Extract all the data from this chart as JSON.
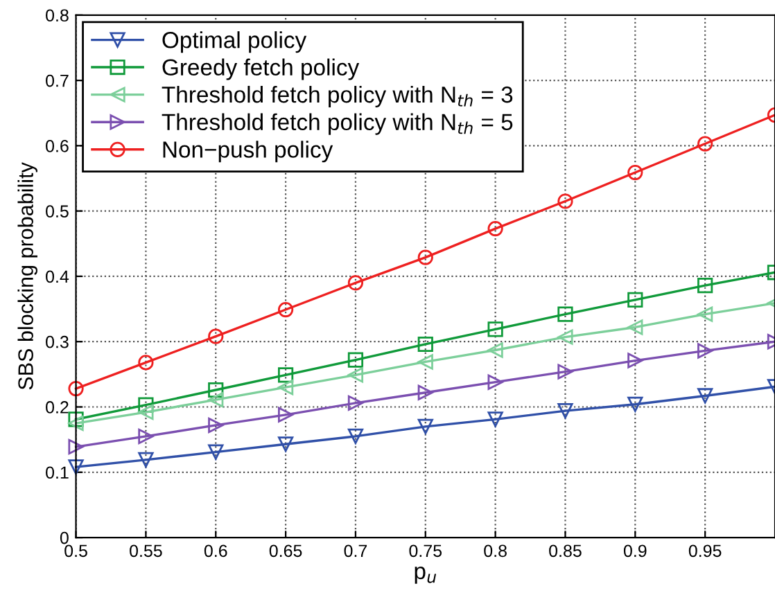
{
  "chart_data": {
    "type": "line",
    "xlabel": "p$_{u}$",
    "ylabel": "SBS blocking probability",
    "x": [
      0.5,
      0.55,
      0.6,
      0.65,
      0.7,
      0.75,
      0.8,
      0.85,
      0.9,
      0.95,
      1.0
    ],
    "series": [
      {
        "name": "Optimal policy",
        "color": "#3050a8",
        "marker": "triangle_down",
        "values": [
          0.108,
          0.119,
          0.131,
          0.143,
          0.155,
          0.17,
          0.181,
          0.194,
          0.204,
          0.217,
          0.231
        ]
      },
      {
        "name": "Greedy fetch policy",
        "color": "#109a3a",
        "marker": "square",
        "values": [
          0.181,
          0.203,
          0.226,
          0.249,
          0.272,
          0.296,
          0.319,
          0.342,
          0.364,
          0.386,
          0.406
        ]
      },
      {
        "name": "Threshold fetch policy with N$_{th}$ = 3",
        "color": "#7ccf9a",
        "marker": "triangle_left",
        "values": [
          0.175,
          0.192,
          0.211,
          0.23,
          0.249,
          0.269,
          0.287,
          0.307,
          0.322,
          0.342,
          0.359
        ]
      },
      {
        "name": "Threshold fetch policy with N$_{th}$ = 5",
        "color": "#7b4fb0",
        "marker": "triangle_right",
        "values": [
          0.139,
          0.155,
          0.172,
          0.188,
          0.206,
          0.222,
          0.238,
          0.254,
          0.271,
          0.286,
          0.3
        ]
      },
      {
        "name": "Non−push policy",
        "color": "#ee2020",
        "marker": "circle",
        "values": [
          0.228,
          0.268,
          0.308,
          0.349,
          0.39,
          0.429,
          0.473,
          0.515,
          0.559,
          0.603,
          0.647
        ]
      }
    ],
    "xlim": [
      0.5,
      1.0
    ],
    "ylim": [
      0,
      0.8
    ],
    "xticks": [
      0.5,
      0.55,
      0.6,
      0.65,
      0.7,
      0.75,
      0.8,
      0.85,
      0.9,
      0.95
    ],
    "yticks": [
      0,
      0.1,
      0.2,
      0.3,
      0.4,
      0.5,
      0.6,
      0.7,
      0.8
    ],
    "grid": true,
    "legend": "top left",
    "line_style": "solid"
  }
}
